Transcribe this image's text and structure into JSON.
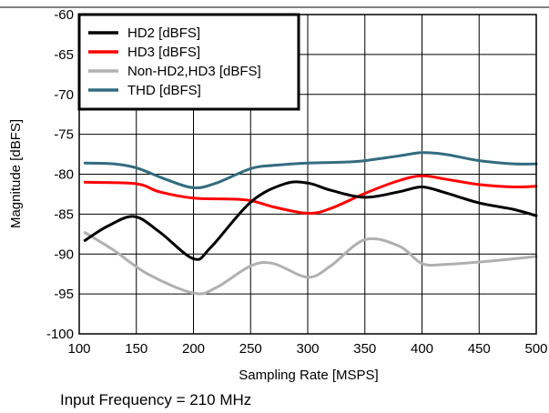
{
  "chart_data": {
    "type": "line",
    "title": "",
    "xlabel": "Sampling Rate [MSPS]",
    "ylabel": "Magnitude [dBFS]",
    "xlim": [
      100,
      500
    ],
    "ylim": [
      -100,
      -60
    ],
    "xticks": [
      100,
      150,
      200,
      250,
      300,
      350,
      400,
      450,
      500
    ],
    "yticks": [
      -60,
      -65,
      -70,
      -75,
      -80,
      -85,
      -90,
      -95,
      -100
    ],
    "grid": true,
    "legend_position": "top-left",
    "series": [
      {
        "name": "HD2 [dBFS]",
        "color": "#000000",
        "x": [
          105,
          125,
          148,
          170,
          200,
          215,
          250,
          280,
          300,
          320,
          350,
          380,
          400,
          420,
          450,
          480,
          500
        ],
        "y": [
          -88.3,
          -86.5,
          -85.3,
          -87.2,
          -90.6,
          -89.2,
          -83.5,
          -81.2,
          -81.1,
          -82.0,
          -82.9,
          -82.2,
          -81.6,
          -82.3,
          -83.6,
          -84.4,
          -85.2
        ]
      },
      {
        "name": "HD3 [dBFS]",
        "color": "#ff0000",
        "x": [
          105,
          150,
          170,
          200,
          230,
          250,
          270,
          300,
          320,
          350,
          380,
          400,
          420,
          450,
          480,
          500
        ],
        "y": [
          -81.0,
          -81.2,
          -82.2,
          -83.0,
          -83.1,
          -83.3,
          -84.1,
          -84.9,
          -84.3,
          -82.4,
          -80.8,
          -80.2,
          -80.6,
          -81.3,
          -81.6,
          -81.5
        ]
      },
      {
        "name": "Non-HD2,HD3 [dBFS]",
        "color": "#b0b0b0",
        "x": [
          105,
          130,
          160,
          200,
          220,
          250,
          270,
          300,
          320,
          350,
          380,
          400,
          420,
          450,
          480,
          500
        ],
        "y": [
          -87.3,
          -89.5,
          -92.5,
          -94.9,
          -94.2,
          -91.5,
          -91.2,
          -92.9,
          -91.5,
          -88.2,
          -89.0,
          -91.2,
          -91.3,
          -91.0,
          -90.6,
          -90.3
        ]
      },
      {
        "name": "THD [dBFS]",
        "color": "#336b80",
        "x": [
          105,
          130,
          150,
          175,
          200,
          220,
          250,
          270,
          300,
          330,
          350,
          380,
          400,
          420,
          450,
          480,
          500
        ],
        "y": [
          -78.6,
          -78.7,
          -79.2,
          -80.6,
          -81.7,
          -81.1,
          -79.3,
          -78.9,
          -78.6,
          -78.5,
          -78.3,
          -77.7,
          -77.3,
          -77.5,
          -78.3,
          -78.7,
          -78.7
        ]
      }
    ]
  },
  "footnote": "Input Frequency = 210 MHz"
}
